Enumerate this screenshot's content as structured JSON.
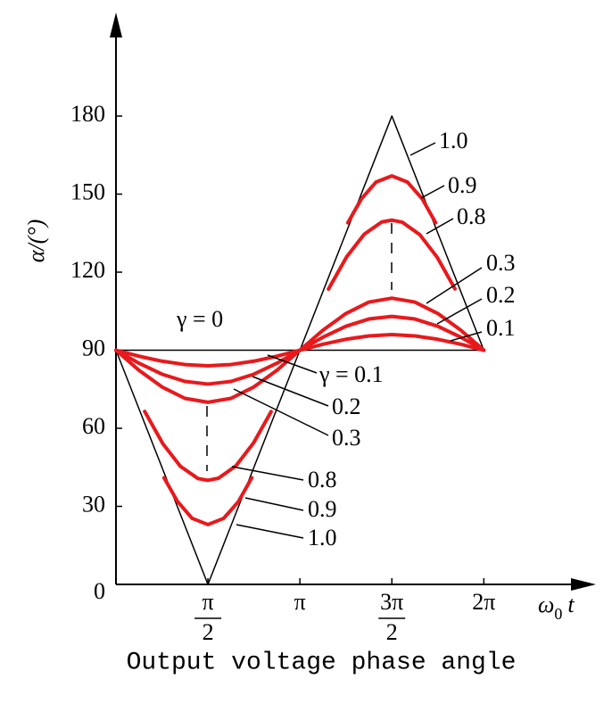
{
  "chart_data": {
    "type": "line",
    "y_label": "α/(°)",
    "x_label": {
      "symbol": "ω",
      "subscript": "0",
      "variable": "t"
    },
    "caption": "Output voltage phase angle",
    "xlim": [
      0,
      8.0
    ],
    "ylim": [
      0,
      215
    ],
    "xticks": [
      {
        "value": 1.5708,
        "label": [
          "π",
          "2"
        ]
      },
      {
        "value": 3.1416,
        "label": "π"
      },
      {
        "value": 4.7124,
        "label": [
          "3π",
          "2"
        ]
      },
      {
        "value": 6.2832,
        "label": "2π"
      }
    ],
    "yticks": [
      0,
      30,
      60,
      90,
      120,
      150,
      180
    ],
    "series": [
      {
        "color": "#000000",
        "x": [
          0,
          6.2832
        ],
        "values": [
          90,
          90
        ]
      },
      {
        "color": "#000000",
        "x": [
          0,
          1.5708,
          3.1416,
          4.7124,
          6.2832
        ],
        "values": [
          90,
          0,
          90,
          180,
          90
        ]
      },
      {
        "color": "#e8191c",
        "x": [
          0,
          0.3927,
          0.7854,
          1.1781,
          1.5708,
          1.9635,
          2.3562,
          2.7489,
          3.1416,
          3.5343,
          3.927,
          4.3197,
          4.7124,
          5.1051,
          5.4978,
          5.8905,
          6.2832
        ],
        "values": [
          90,
          87.7,
          85.8,
          84.5,
          84,
          84.5,
          85.8,
          87.7,
          90,
          92.3,
          94.2,
          95.5,
          96,
          95.5,
          94.2,
          92.3,
          90
        ]
      },
      {
        "color": "#e8191c",
        "x": [
          0,
          0.3927,
          0.7854,
          1.1781,
          1.5708,
          1.9635,
          2.3562,
          2.7489,
          3.1416,
          3.5343,
          3.927,
          4.3197,
          4.7124,
          5.1051,
          5.4978,
          5.8905,
          6.2832
        ],
        "values": [
          90,
          85.0,
          80.8,
          78.0,
          77,
          78.0,
          80.8,
          85.0,
          90,
          95.0,
          99.2,
          102.0,
          103,
          102.0,
          99.2,
          95.0,
          90
        ]
      },
      {
        "color": "#e8191c",
        "x": [
          0,
          0.3927,
          0.7854,
          1.1781,
          1.5708,
          1.9635,
          2.3562,
          2.7489,
          3.1416,
          3.5343,
          3.927,
          4.3197,
          4.7124,
          5.1051,
          5.4978,
          5.8905,
          6.2832
        ],
        "values": [
          90,
          82.3,
          75.9,
          71.5,
          70,
          71.5,
          75.9,
          82.3,
          90,
          97.7,
          104.1,
          108.5,
          110,
          108.5,
          104.1,
          97.7,
          90
        ]
      },
      {
        "color": "#e8191c",
        "x": [
          0.49,
          0.8,
          1.1,
          1.4,
          1.5708,
          1.75,
          2.05,
          2.35,
          2.65
        ],
        "values": [
          66.5,
          54.1,
          45.4,
          40.7,
          40,
          40.8,
          45.6,
          54.4,
          66.4
        ]
      },
      {
        "color": "#e8191c",
        "x": [
          3.63,
          3.94,
          4.24,
          4.54,
          4.7124,
          4.89,
          5.19,
          5.49,
          5.79
        ],
        "values": [
          113.5,
          125.9,
          134.6,
          139.3,
          140,
          139.2,
          134.4,
          125.6,
          113.6
        ]
      },
      {
        "color": "#e8191c",
        "x": [
          0.82,
          1.05,
          1.3,
          1.5708,
          1.84,
          2.09,
          2.32
        ],
        "values": [
          41.0,
          31.9,
          25.4,
          23,
          25.4,
          31.8,
          41.0
        ]
      },
      {
        "color": "#e8191c",
        "x": [
          3.96,
          4.19,
          4.44,
          4.7124,
          4.98,
          5.23,
          5.46
        ],
        "values": [
          139.0,
          148.1,
          154.6,
          157,
          154.6,
          148.2,
          139.0
        ]
      }
    ],
    "annotations": [
      "γ = 0",
      "γ = 0.1",
      "0.2",
      "0.3",
      "0.8",
      "0.9",
      "1.0",
      "1.0",
      "0.9",
      "0.8",
      "0.3",
      "0.2",
      "0.1"
    ]
  }
}
